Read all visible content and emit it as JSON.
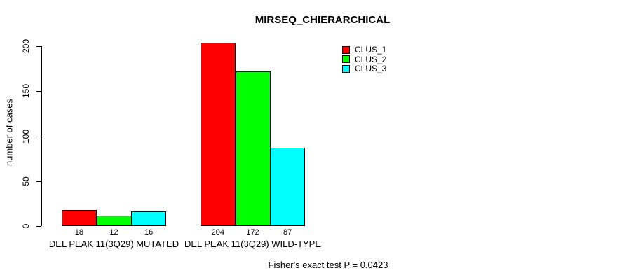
{
  "chart_data": {
    "type": "bar",
    "title": "MIRSEQ_CHIERARCHICAL",
    "ylabel": "number of cases",
    "xlabel": "",
    "categories": [
      "DEL PEAK 11(3Q29) MUTATED",
      "DEL PEAK 11(3Q29) WILD-TYPE"
    ],
    "series": [
      {
        "name": "CLUS_1",
        "color": "#ff0000",
        "values": [
          18,
          204
        ]
      },
      {
        "name": "CLUS_2",
        "color": "#00ff00",
        "values": [
          12,
          172
        ]
      },
      {
        "name": "CLUS_3",
        "color": "#00ffff",
        "values": [
          16,
          87
        ]
      }
    ],
    "bar_value_labels": [
      [
        "18",
        "12",
        "16"
      ],
      [
        "204",
        "172",
        "87"
      ]
    ],
    "yticks": [
      0,
      50,
      100,
      150,
      200
    ],
    "ylim": [
      0,
      213
    ],
    "grid": false,
    "legend_position": "top-right",
    "annotation": "Fisher's exact test P = 0.0423",
    "axis_color": "#000000",
    "background_color": "#ffffff"
  }
}
